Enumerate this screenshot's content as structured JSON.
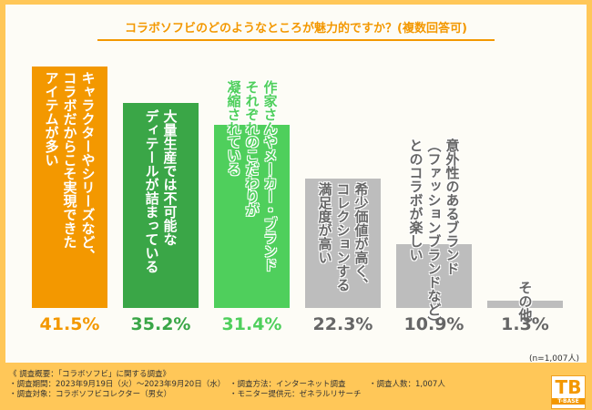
{
  "chart_data": {
    "type": "bar",
    "title": "コラボソフビのどのようなところが魅力的ですか？(複数回答可)",
    "categories": [
      "キャラクターやシリーズなど、\nコラボだからこそ実現できた\nアイテムが多い",
      "大量生産では不可能な\nディテールが詰まっている",
      "作家さんやメーカー・ブランド\nそれぞれのこだわりが\n凝縮されている",
      "希少価値が高く、\nコレクションする\n満足度が高い",
      "意外性のあるブランド\n（ファッションブランドなど）\nとのコラボが楽しい",
      "その他"
    ],
    "values": [
      41.5,
      35.2,
      31.4,
      22.3,
      10.9,
      1.3
    ],
    "value_labels": [
      "41.5%",
      "35.2%",
      "31.4%",
      "22.3%",
      "10.9%",
      "1.3%"
    ],
    "unit": "%",
    "colors": [
      "#f39800",
      "#3aa647",
      "#4fcf5c",
      "#bdbdbd",
      "#bdbdbd",
      "#bdbdbd"
    ],
    "label_colors": [
      "#f39800",
      "#3aa647",
      "#4fcf5c",
      "#666666",
      "#666666",
      "#666666"
    ],
    "ylim": [
      0,
      41.5
    ],
    "grid": false,
    "note": "(n=1,007人)"
  },
  "footer": {
    "overview": "《 調査概要：「コラボソフビ」に関する調査》",
    "period": "・調査期間：2023年9月19日（火）～2023年9月20日（水）",
    "target": "・調査対象：コラボソフビコレクター（男女）",
    "method": "・調査方法：インターネット調査",
    "provider": "・モニター提供元：ゼネラルリサーチ",
    "count": "・調査人数：1,007人"
  },
  "logo": {
    "mark": "TB",
    "text": "T-BASE"
  }
}
